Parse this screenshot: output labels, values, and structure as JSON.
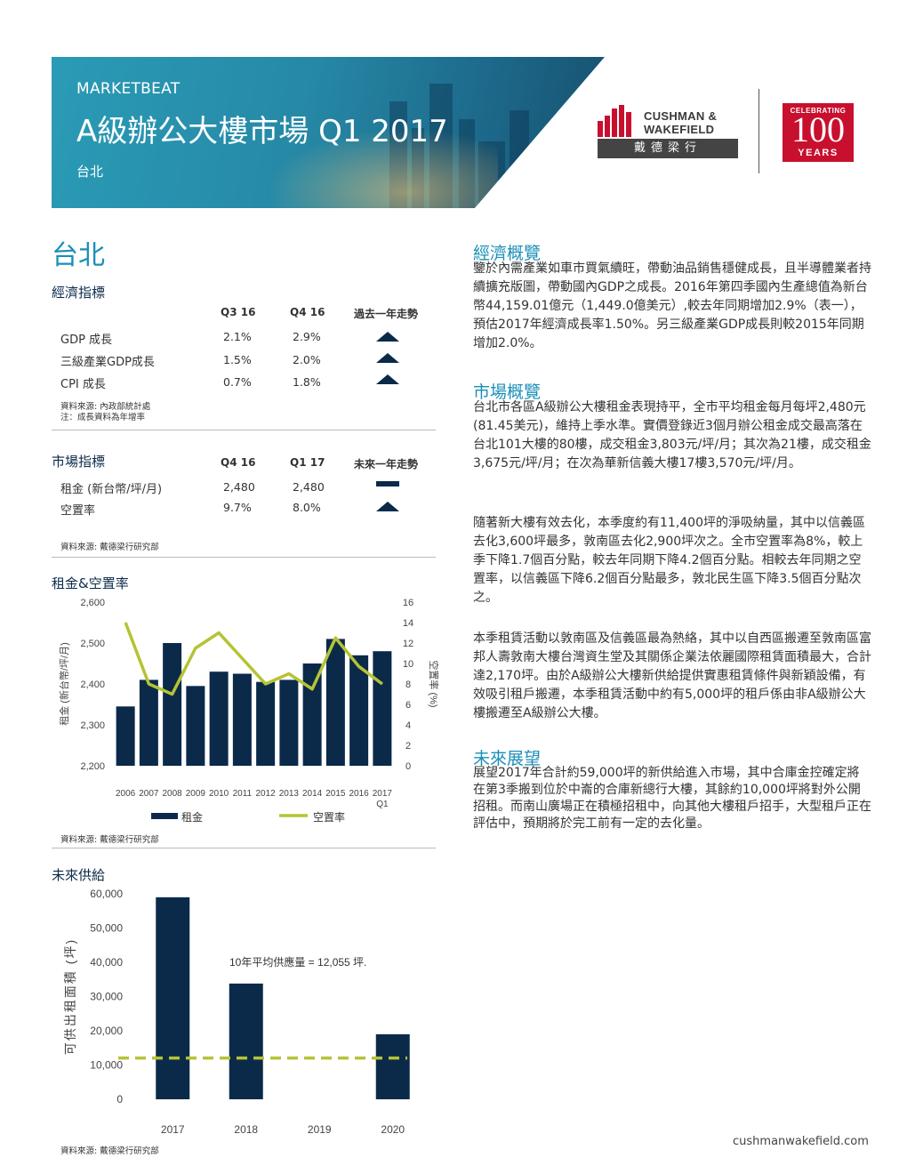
{
  "header": {
    "brand": "MARKETBEAT",
    "title": "A級辦公大樓市場 Q1 2017",
    "city": "台北"
  },
  "logos": {
    "cw_line1": "CUSHMAN &",
    "cw_line2": "WAKEFIELD",
    "cw_chinese": "戴德梁行",
    "celebrating": "CELEBRATING",
    "hundred": "100",
    "years": "YEARS"
  },
  "city_heading": "台北",
  "economic": {
    "title": "經濟指標",
    "columns": [
      "Q3 16",
      "Q4 16",
      "過去一年走勢"
    ],
    "rows": [
      {
        "label": "GDP 成長",
        "v1": "2.1%",
        "v2": "2.9%",
        "trend": "up"
      },
      {
        "label": "三級產業GDP成長",
        "v1": "1.5%",
        "v2": "2.0%",
        "trend": "up"
      },
      {
        "label": "CPI 成長",
        "v1": "0.7%",
        "v2": "1.8%",
        "trend": "up"
      }
    ],
    "source": "資料來源: 內政部統計處",
    "note": "注：成長資料為年增率"
  },
  "market": {
    "title": "市場指標",
    "columns": [
      "Q4 16",
      "Q1 17",
      "未來一年走勢"
    ],
    "rows": [
      {
        "label": "租金 (新台幣/坪/月)",
        "v1": "2,480",
        "v2": "2,480",
        "trend": "flat"
      },
      {
        "label": "空置率",
        "v1": "9.7%",
        "v2": "8.0%",
        "trend": "up"
      }
    ],
    "source": "資料來源: 戴德梁行研究部"
  },
  "rent_chart_title": "租金&空置率",
  "rent_chart_source": "資料來源: 戴德梁行研究部",
  "supply_chart_title": "未來供給",
  "supply_chart_source": "資料來源: 戴德梁行研究部",
  "chart_data": [
    {
      "type": "bar",
      "title": "租金&空置率",
      "categories": [
        "2006",
        "2007",
        "2008",
        "2009",
        "2010",
        "2011",
        "2012",
        "2013",
        "2014",
        "2015",
        "2016",
        "2017 Q1"
      ],
      "series": [
        {
          "name": "租金",
          "type": "bar",
          "axis": "left",
          "values": [
            2345,
            2410,
            2500,
            2395,
            2430,
            2425,
            2405,
            2410,
            2450,
            2510,
            2470,
            2480
          ]
        },
        {
          "name": "空置率",
          "type": "line",
          "axis": "right",
          "values": [
            14.0,
            8.0,
            7.0,
            11.5,
            13.0,
            10.5,
            8.0,
            9.0,
            7.5,
            12.5,
            9.7,
            8.0
          ]
        }
      ],
      "ylabel": "租金  (新台幣/坪/月)",
      "y2label": "空置率  (%)",
      "ylim": [
        2200,
        2600
      ],
      "yticks": [
        "2,200",
        "2,300",
        "2,400",
        "2,500",
        "2,600"
      ],
      "y2lim": [
        0,
        16
      ],
      "y2ticks": [
        "0",
        "2",
        "4",
        "6",
        "8",
        "10",
        "12",
        "14",
        "16"
      ],
      "legend": "bottom",
      "colors": {
        "bar": "#0b2a4a",
        "line": "#b5c334"
      }
    },
    {
      "type": "bar",
      "title": "未來供給",
      "categories": [
        "2017",
        "2018",
        "2019",
        "2020"
      ],
      "values": [
        59000,
        33800,
        0,
        19000
      ],
      "ylabel": "可供出租面積  (坪)",
      "ylim": [
        0,
        60000
      ],
      "yticks": [
        "0",
        "10,000",
        "20,000",
        "30,000",
        "40,000",
        "50,000",
        "60,000"
      ],
      "reference_line": {
        "value": 12055,
        "label": "10年平均供應量 = 12,055 坪."
      },
      "colors": {
        "bar": "#0b2a4a",
        "line": "#b5c334"
      }
    }
  ],
  "right": {
    "economy_title": "經濟概覽",
    "economy_text": "鑒於內需產業如車市買氣續旺，帶動油品銷售穩健成長，且半導體業者持續擴充版圖，帶動國內GDP之成長。2016年第四季國內生產總值為新台幣44,159.01億元（1,449.0億美元）,較去年同期增加2.9%（表一），預估2017年經濟成長率1.50%。另三級產業GDP成長則較2015年同期增加2.0%。",
    "market_title": "市場概覽",
    "market_text1": "台北市各區A級辦公大樓租金表現持平，全市平均租金每月每坪2,480元(81.45美元)，維持上季水準。實價登錄近3個月辦公租金成交最高落在台北101大樓的80樓，成交租金3,803元/坪/月；其次為21樓，成交租金3,675元/坪/月；在次為華新信義大樓17樓3,570元/坪/月。",
    "market_text2": "隨著新大樓有效去化，本季度約有11,400坪的淨吸納量，其中以信義區去化3,600坪最多，敦南區去化2,900坪次之。全市空置率為8%，較上季下降1.7個百分點，較去年同期下降4.2個百分點。相較去年同期之空置率，以信義區下降6.2個百分點最多，敦北民生區下降3.5個百分點次之。",
    "market_text3": "本季租賃活動以敦南區及信義區最為熱絡，其中以自西區搬遷至敦南區富邦人壽敦南大樓台灣資生堂及其關係企業法依麗國際租賃面積最大，合計達2,170坪。由於A級辦公大樓新供給提供實惠租賃條件與新穎設備，有效吸引租戶搬遷，本季租賃活動中約有5,000坪的租戶係由非A級辦公大樓搬遷至A級辦公大樓。",
    "outlook_title": "未來展望",
    "outlook_text": "展望2017年合計約59,000坪的新供給進入市場，其中合庫金控確定將在第3季搬到位於中崙的合庫新總行大樓，其餘約10,000坪將對外公開招租。而南山廣場正在積極招租中，向其他大樓租戶招手，大型租戶正在評估中，預期將於完工前有一定的去化量。"
  },
  "footer": {
    "url": "cushmanwakefield.com"
  }
}
